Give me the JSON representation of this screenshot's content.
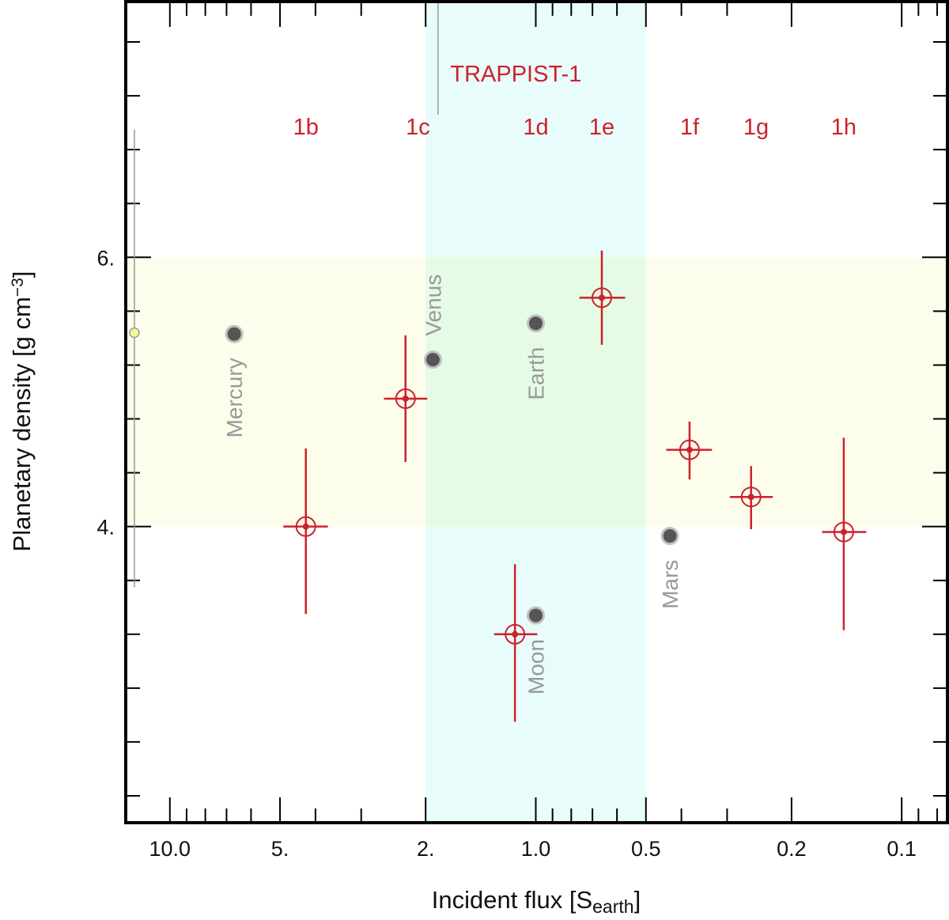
{
  "colors": {
    "trappist": "#cc2229",
    "solar_planet": "#555555",
    "solar_planet_edge": "#c0c0c0",
    "planet_label": "#999999",
    "hz_band": "#e8fcfc",
    "rocky_band": "#fdfdec",
    "overlap_band": "#e6fbe6",
    "star_marker": "#f5f59c",
    "axis": "#000000"
  },
  "chart_data": {
    "type": "scatter",
    "title": "",
    "xlabel": {
      "prefix": "Incident flux [S",
      "sub": "earth",
      "suffix": "]"
    },
    "ylabel": {
      "prefix": "Planetary density [g cm",
      "sup": "−3",
      "suffix": "]"
    },
    "x_scale": "log",
    "x_reversed": true,
    "xlim": [
      13.2,
      0.075
    ],
    "ylim": [
      1.8,
      7.9
    ],
    "x_ticks": [
      {
        "value": 10.0,
        "label": "10.0"
      },
      {
        "value": 5.0,
        "label": "5."
      },
      {
        "value": 2.0,
        "label": "2."
      },
      {
        "value": 1.0,
        "label": "1.0"
      },
      {
        "value": 0.5,
        "label": "0.5"
      },
      {
        "value": 0.2,
        "label": "0.2"
      },
      {
        "value": 0.1,
        "label": "0.1"
      }
    ],
    "y_ticks": [
      {
        "value": 4.0,
        "label": "4."
      },
      {
        "value": 6.0,
        "label": "6."
      }
    ],
    "bands": [
      {
        "name": "rocky-density-band",
        "y_range": [
          4.0,
          6.0
        ]
      },
      {
        "name": "habitable-zone-band",
        "x_range": [
          2.0,
          0.5
        ]
      }
    ],
    "group_label": "TRAPPIST-1",
    "group_label_x": 1.8,
    "group_marker_x": 1.85,
    "star_marker": {
      "x": 12.5,
      "y": 5.44,
      "y_err": [
        3.55,
        6.95
      ]
    },
    "trappist_series": [
      {
        "name": "1b",
        "x": 4.25,
        "y": 4.0,
        "x_err": [
          4.9,
          3.7
        ],
        "y_err": [
          3.35,
          4.58
        ],
        "label_x": 4.25
      },
      {
        "name": "1c",
        "x": 2.27,
        "y": 4.95,
        "x_err": [
          2.6,
          1.98
        ],
        "y_err": [
          4.48,
          5.42
        ],
        "label_x": 2.1
      },
      {
        "name": "1d",
        "x": 1.14,
        "y": 3.2,
        "x_err": [
          1.3,
          0.99
        ],
        "y_err": [
          2.55,
          3.72
        ],
        "label_x": 1.0
      },
      {
        "name": "1e",
        "x": 0.66,
        "y": 5.7,
        "x_err": [
          0.76,
          0.57
        ],
        "y_err": [
          5.35,
          6.05
        ],
        "label_x": 0.66
      },
      {
        "name": "1f",
        "x": 0.38,
        "y": 4.57,
        "x_err": [
          0.44,
          0.33
        ],
        "y_err": [
          4.35,
          4.78
        ],
        "label_x": 0.38
      },
      {
        "name": "1g",
        "x": 0.258,
        "y": 4.22,
        "x_err": [
          0.295,
          0.225
        ],
        "y_err": [
          3.98,
          4.45
        ],
        "label_x": 0.25
      },
      {
        "name": "1h",
        "x": 0.144,
        "y": 3.96,
        "x_err": [
          0.165,
          0.125
        ],
        "y_err": [
          3.23,
          4.66
        ],
        "label_x": 0.144
      }
    ],
    "solar_system": [
      {
        "name": "Mercury",
        "x": 6.67,
        "y": 5.43,
        "label_pos": "below"
      },
      {
        "name": "Venus",
        "x": 1.91,
        "y": 5.24,
        "label_pos": "above"
      },
      {
        "name": "Earth",
        "x": 1.0,
        "y": 5.51,
        "label_pos": "below"
      },
      {
        "name": "Moon",
        "x": 1.0,
        "y": 3.34,
        "label_pos": "below"
      },
      {
        "name": "Mars",
        "x": 0.43,
        "y": 3.93,
        "label_pos": "below"
      }
    ]
  }
}
